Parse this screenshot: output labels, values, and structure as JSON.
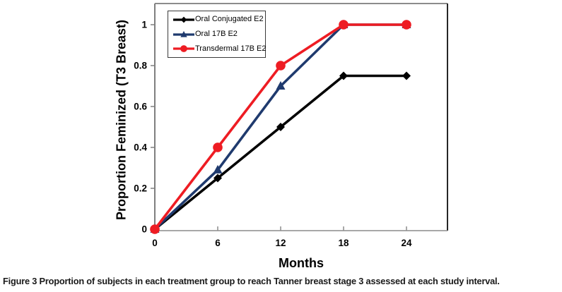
{
  "figure": {
    "caption_label": "Figure 3",
    "caption_text": "Proportion of subjects in each treatment group to reach Tanner breast stage 3 assessed at each study interval."
  },
  "chart_data": {
    "type": "line",
    "title": "",
    "xlabel": "Months",
    "ylabel": "Proportion Feminized (T3 Breast)",
    "x": [
      0,
      6,
      12,
      18,
      24
    ],
    "x_tick_labels": [
      "0",
      "6",
      "12",
      "18",
      "24"
    ],
    "y_tick_labels": [
      "0",
      "0.2",
      "0.4",
      "0.6",
      "0.8",
      "1"
    ],
    "xlim": [
      0,
      28
    ],
    "ylim": [
      0,
      1.1
    ],
    "grid": false,
    "legend_position": "top-left-inside",
    "axis_color": "#8c8c8c",
    "series": [
      {
        "name": "Oral Conjugated E2",
        "marker": "diamond",
        "color": "#000000",
        "values": [
          0,
          0.25,
          0.5,
          0.75,
          0.75
        ]
      },
      {
        "name": "Oral 17B E2",
        "marker": "triangle",
        "color": "#1f3a6e",
        "values": [
          0,
          0.29,
          0.7,
          1,
          1
        ]
      },
      {
        "name": "Transdermal 17B E2",
        "marker": "circle",
        "color": "#ee1c23",
        "values": [
          0,
          0.4,
          0.8,
          1,
          1
        ]
      }
    ]
  }
}
